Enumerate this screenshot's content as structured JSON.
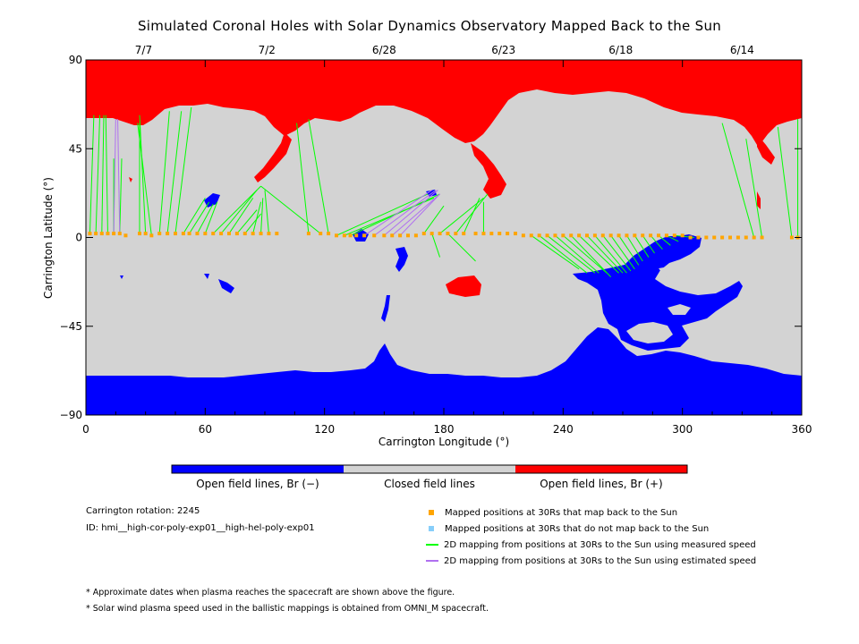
{
  "chart_data": {
    "type": "heatmap",
    "title": "Simulated Coronal Holes with Solar Dynamics Observatory Mapped Back to the Sun",
    "xlabel": "Carrington Longitude (°)",
    "ylabel": "Carrington Latitude (°)",
    "xlim": [
      0,
      360
    ],
    "ylim": [
      -90,
      90
    ],
    "x_ticks": [
      "0",
      "60",
      "120",
      "180",
      "240",
      "300",
      "360"
    ],
    "y_ticks": [
      "90",
      "45",
      "0",
      "−45",
      "−90"
    ],
    "top_axis_dates": [
      {
        "label": "7/7",
        "lon": 29
      },
      {
        "label": "7/2",
        "lon": 91
      },
      {
        "label": "6/28",
        "lon": 150
      },
      {
        "label": "6/23",
        "lon": 210
      },
      {
        "label": "6/18",
        "lon": 269
      },
      {
        "label": "6/14",
        "lon": 330
      }
    ],
    "colorbar": [
      {
        "label": "Open field lines, Br (−)",
        "color": "#0000ff"
      },
      {
        "label": "Closed field lines",
        "color": "#d3d3d3"
      },
      {
        "label": "Open field lines, Br (+)",
        "color": "#ff0000"
      }
    ],
    "mapped_points_30Rs": [
      [
        2,
        2
      ],
      [
        5,
        2
      ],
      [
        8,
        2
      ],
      [
        11,
        2
      ],
      [
        14,
        2
      ],
      [
        17,
        2
      ],
      [
        20,
        1
      ],
      [
        27,
        2
      ],
      [
        30,
        2
      ],
      [
        33,
        1
      ],
      [
        37,
        2
      ],
      [
        41,
        2
      ],
      [
        45,
        2
      ],
      [
        49,
        2
      ],
      [
        52,
        2
      ],
      [
        56,
        2
      ],
      [
        60,
        2
      ],
      [
        64,
        2
      ],
      [
        68,
        2
      ],
      [
        72,
        2
      ],
      [
        76,
        2
      ],
      [
        80,
        2
      ],
      [
        84,
        2
      ],
      [
        88,
        2
      ],
      [
        92,
        2
      ],
      [
        96,
        2
      ],
      [
        112,
        2
      ],
      [
        118,
        2
      ],
      [
        122,
        2
      ],
      [
        126,
        1
      ],
      [
        130,
        1
      ],
      [
        133,
        1
      ],
      [
        136,
        1
      ],
      [
        140,
        1
      ],
      [
        145,
        1
      ],
      [
        150,
        1
      ],
      [
        154,
        1
      ],
      [
        158,
        1
      ],
      [
        162,
        1
      ],
      [
        166,
        1
      ],
      [
        170,
        2
      ],
      [
        174,
        2
      ],
      [
        178,
        2
      ],
      [
        182,
        2
      ],
      [
        186,
        2
      ],
      [
        190,
        2
      ],
      [
        196,
        2
      ],
      [
        200,
        2
      ],
      [
        204,
        2
      ],
      [
        208,
        2
      ],
      [
        212,
        2
      ],
      [
        216,
        2
      ],
      [
        220,
        1
      ],
      [
        224,
        1
      ],
      [
        228,
        1
      ],
      [
        232,
        1
      ],
      [
        236,
        1
      ],
      [
        240,
        1
      ],
      [
        244,
        1
      ],
      [
        248,
        1
      ],
      [
        252,
        1
      ],
      [
        256,
        1
      ],
      [
        260,
        1
      ],
      [
        264,
        1
      ],
      [
        268,
        1
      ],
      [
        272,
        1
      ],
      [
        276,
        1
      ],
      [
        280,
        1
      ],
      [
        284,
        1
      ],
      [
        288,
        1
      ],
      [
        292,
        1
      ],
      [
        296,
        1
      ],
      [
        300,
        1
      ],
      [
        304,
        0
      ],
      [
        308,
        0
      ],
      [
        312,
        0
      ],
      [
        316,
        0
      ],
      [
        320,
        0
      ],
      [
        324,
        0
      ],
      [
        328,
        0
      ],
      [
        332,
        0
      ],
      [
        336,
        0
      ],
      [
        340,
        0
      ],
      [
        355,
        0
      ],
      [
        358,
        0
      ]
    ],
    "mappings_measured_speed": [
      [
        [
          2,
          2
        ],
        [
          4,
          62
        ]
      ],
      [
        [
          5,
          2
        ],
        [
          7,
          62
        ]
      ],
      [
        [
          8,
          2
        ],
        [
          9,
          62
        ]
      ],
      [
        [
          11,
          2
        ],
        [
          10,
          62
        ]
      ],
      [
        [
          14,
          2
        ],
        [
          14,
          40
        ]
      ],
      [
        [
          17,
          2
        ],
        [
          18,
          40
        ]
      ],
      [
        [
          27,
          2
        ],
        [
          27,
          58
        ]
      ],
      [
        [
          30,
          2
        ],
        [
          27,
          62
        ]
      ],
      [
        [
          33,
          1
        ],
        [
          26,
          58
        ]
      ],
      [
        [
          37,
          2
        ],
        [
          42,
          64
        ]
      ],
      [
        [
          41,
          2
        ],
        [
          48,
          64
        ]
      ],
      [
        [
          45,
          2
        ],
        [
          53,
          66
        ]
      ],
      [
        [
          49,
          2
        ],
        [
          60,
          20
        ]
      ],
      [
        [
          52,
          2
        ],
        [
          62,
          18
        ]
      ],
      [
        [
          56,
          2
        ],
        [
          64,
          17
        ]
      ],
      [
        [
          60,
          2
        ],
        [
          66,
          18
        ]
      ],
      [
        [
          64,
          2
        ],
        [
          88,
          26
        ]
      ],
      [
        [
          68,
          2
        ],
        [
          86,
          24
        ]
      ],
      [
        [
          72,
          2
        ],
        [
          84,
          20
        ]
      ],
      [
        [
          76,
          2
        ],
        [
          86,
          14
        ]
      ],
      [
        [
          80,
          2
        ],
        [
          88,
          12
        ]
      ],
      [
        [
          84,
          2
        ],
        [
          88,
          18
        ]
      ],
      [
        [
          88,
          2
        ],
        [
          89,
          20
        ]
      ],
      [
        [
          92,
          2
        ],
        [
          90,
          24
        ]
      ],
      [
        [
          112,
          2
        ],
        [
          106,
          58
        ]
      ],
      [
        [
          118,
          2
        ],
        [
          88,
          26
        ]
      ],
      [
        [
          122,
          2
        ],
        [
          112,
          60
        ]
      ],
      [
        [
          126,
          1
        ],
        [
          172,
          22
        ]
      ],
      [
        [
          130,
          1
        ],
        [
          175,
          20
        ]
      ],
      [
        [
          133,
          1
        ],
        [
          178,
          22
        ]
      ],
      [
        [
          170,
          2
        ],
        [
          180,
          16
        ]
      ],
      [
        [
          174,
          2
        ],
        [
          178,
          -10
        ]
      ],
      [
        [
          178,
          2
        ],
        [
          200,
          20
        ]
      ],
      [
        [
          182,
          2
        ],
        [
          196,
          -12
        ]
      ],
      [
        [
          186,
          2
        ],
        [
          202,
          22
        ]
      ],
      [
        [
          190,
          2
        ],
        [
          198,
          20
        ]
      ],
      [
        [
          200,
          2
        ],
        [
          200,
          18
        ]
      ],
      [
        [
          224,
          1
        ],
        [
          248,
          -16
        ]
      ],
      [
        [
          228,
          1
        ],
        [
          252,
          -18
        ]
      ],
      [
        [
          232,
          1
        ],
        [
          256,
          -18
        ]
      ],
      [
        [
          236,
          1
        ],
        [
          258,
          -18
        ]
      ],
      [
        [
          240,
          1
        ],
        [
          262,
          -18
        ]
      ],
      [
        [
          244,
          1
        ],
        [
          264,
          -20
        ]
      ],
      [
        [
          248,
          1
        ],
        [
          268,
          -18
        ]
      ],
      [
        [
          252,
          1
        ],
        [
          270,
          -18
        ]
      ],
      [
        [
          256,
          1
        ],
        [
          272,
          -18
        ]
      ],
      [
        [
          260,
          1
        ],
        [
          274,
          -17
        ]
      ],
      [
        [
          264,
          1
        ],
        [
          276,
          -16
        ]
      ],
      [
        [
          268,
          1
        ],
        [
          278,
          -14
        ]
      ],
      [
        [
          272,
          1
        ],
        [
          280,
          -12
        ]
      ],
      [
        [
          276,
          1
        ],
        [
          283,
          -10
        ]
      ],
      [
        [
          280,
          1
        ],
        [
          286,
          -8
        ]
      ],
      [
        [
          284,
          1
        ],
        [
          290,
          -6
        ]
      ],
      [
        [
          288,
          1
        ],
        [
          294,
          -4
        ]
      ],
      [
        [
          292,
          1
        ],
        [
          298,
          -2
        ]
      ],
      [
        [
          296,
          1
        ],
        [
          306,
          0
        ]
      ],
      [
        [
          336,
          0
        ],
        [
          320,
          58
        ]
      ],
      [
        [
          340,
          0
        ],
        [
          332,
          50
        ]
      ],
      [
        [
          355,
          0
        ],
        [
          348,
          56
        ]
      ],
      [
        [
          358,
          0
        ],
        [
          358,
          60
        ]
      ]
    ],
    "mappings_estimated_speed": [
      [
        [
          14,
          2
        ],
        [
          15,
          60
        ]
      ],
      [
        [
          17,
          2
        ],
        [
          16,
          60
        ]
      ],
      [
        [
          140,
          1
        ],
        [
          174,
          24
        ]
      ],
      [
        [
          145,
          1
        ],
        [
          176,
          24
        ]
      ],
      [
        [
          150,
          1
        ],
        [
          177,
          24
        ]
      ],
      [
        [
          154,
          1
        ],
        [
          178,
          22
        ]
      ],
      [
        [
          158,
          1
        ],
        [
          178,
          22
        ]
      ]
    ]
  },
  "info": {
    "rotation": "Carrington rotation: 2245",
    "id": "ID: hmi__high-cor-poly-exp01__high-hel-poly-exp01"
  },
  "legend": [
    {
      "label": "Mapped positions at 30Rs that map back to the Sun",
      "color": "#ffa500",
      "kind": "square"
    },
    {
      "label": "Mapped positions at 30Rs that do not map back to the Sun",
      "color": "#87cefa",
      "kind": "square"
    },
    {
      "label": "2D mapping from positions at 30Rs to the Sun using measured speed",
      "color": "#00ff00",
      "kind": "line"
    },
    {
      "label": "2D mapping from positions at 30Rs to the Sun using estimated speed",
      "color": "#b070f0",
      "kind": "line"
    }
  ],
  "notes": [
    "* Approximate dates when plasma reaches the spacecraft are shown above the figure.",
    "* Solar wind plasma speed used in the ballistic mappings is obtained from OMNI_M spacecraft."
  ]
}
